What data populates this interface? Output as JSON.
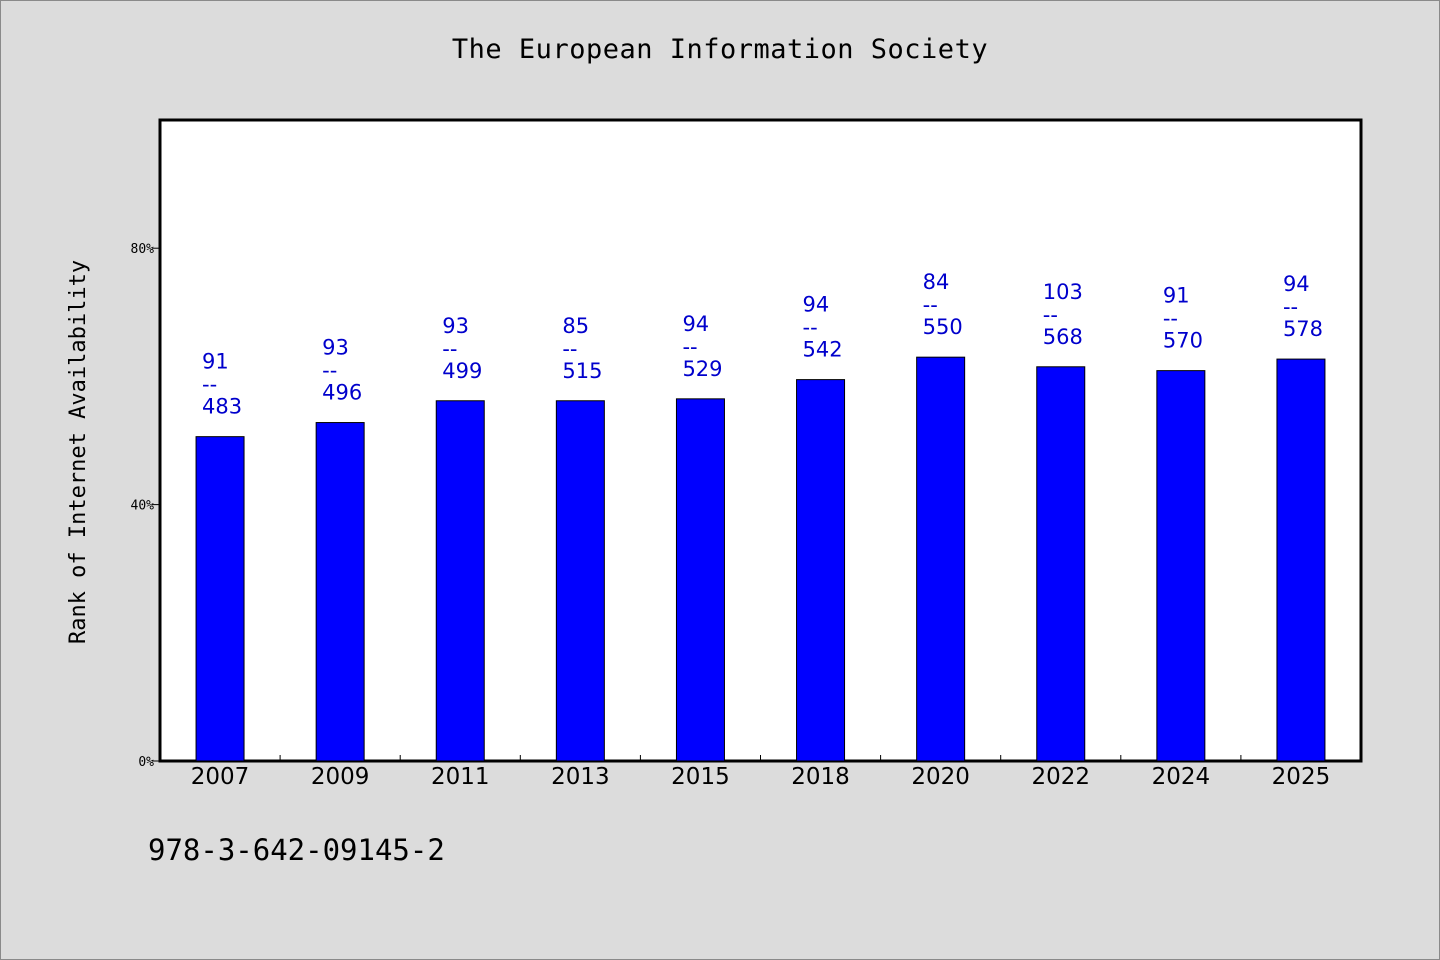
{
  "chart_data": {
    "type": "bar",
    "title": "The European Information Society",
    "ylabel": "Rank of Internet Availability",
    "xlabel": "",
    "ylim": [
      0,
      100
    ],
    "yticks": [
      0,
      40,
      80
    ],
    "ytick_labels": [
      "0%",
      "40%",
      "80%"
    ],
    "categories": [
      "2007",
      "2009",
      "2011",
      "2013",
      "2015",
      "2018",
      "2020",
      "2022",
      "2024",
      "2025"
    ],
    "values": [
      50.6,
      52.8,
      56.2,
      56.2,
      56.5,
      59.5,
      63.0,
      61.5,
      60.9,
      62.7
    ],
    "annotations": [
      {
        "top": "91",
        "sep": "--",
        "bottom": "483"
      },
      {
        "top": "93",
        "sep": "--",
        "bottom": "496"
      },
      {
        "top": "93",
        "sep": "--",
        "bottom": "499"
      },
      {
        "top": "85",
        "sep": "--",
        "bottom": "515"
      },
      {
        "top": "94",
        "sep": "--",
        "bottom": "529"
      },
      {
        "top": "94",
        "sep": "--",
        "bottom": "542"
      },
      {
        "top": "84",
        "sep": "--",
        "bottom": "550"
      },
      {
        "top": "103",
        "sep": "--",
        "bottom": "568"
      },
      {
        "top": "91",
        "sep": "--",
        "bottom": "570"
      },
      {
        "top": "94",
        "sep": "--",
        "bottom": "578"
      }
    ],
    "grid": false,
    "colors": {
      "bar": "#0000ff",
      "label": "#0000cc",
      "background": "#dcdcdc",
      "plot": "#ffffff"
    }
  },
  "footnote": "978-3-642-09145-2"
}
